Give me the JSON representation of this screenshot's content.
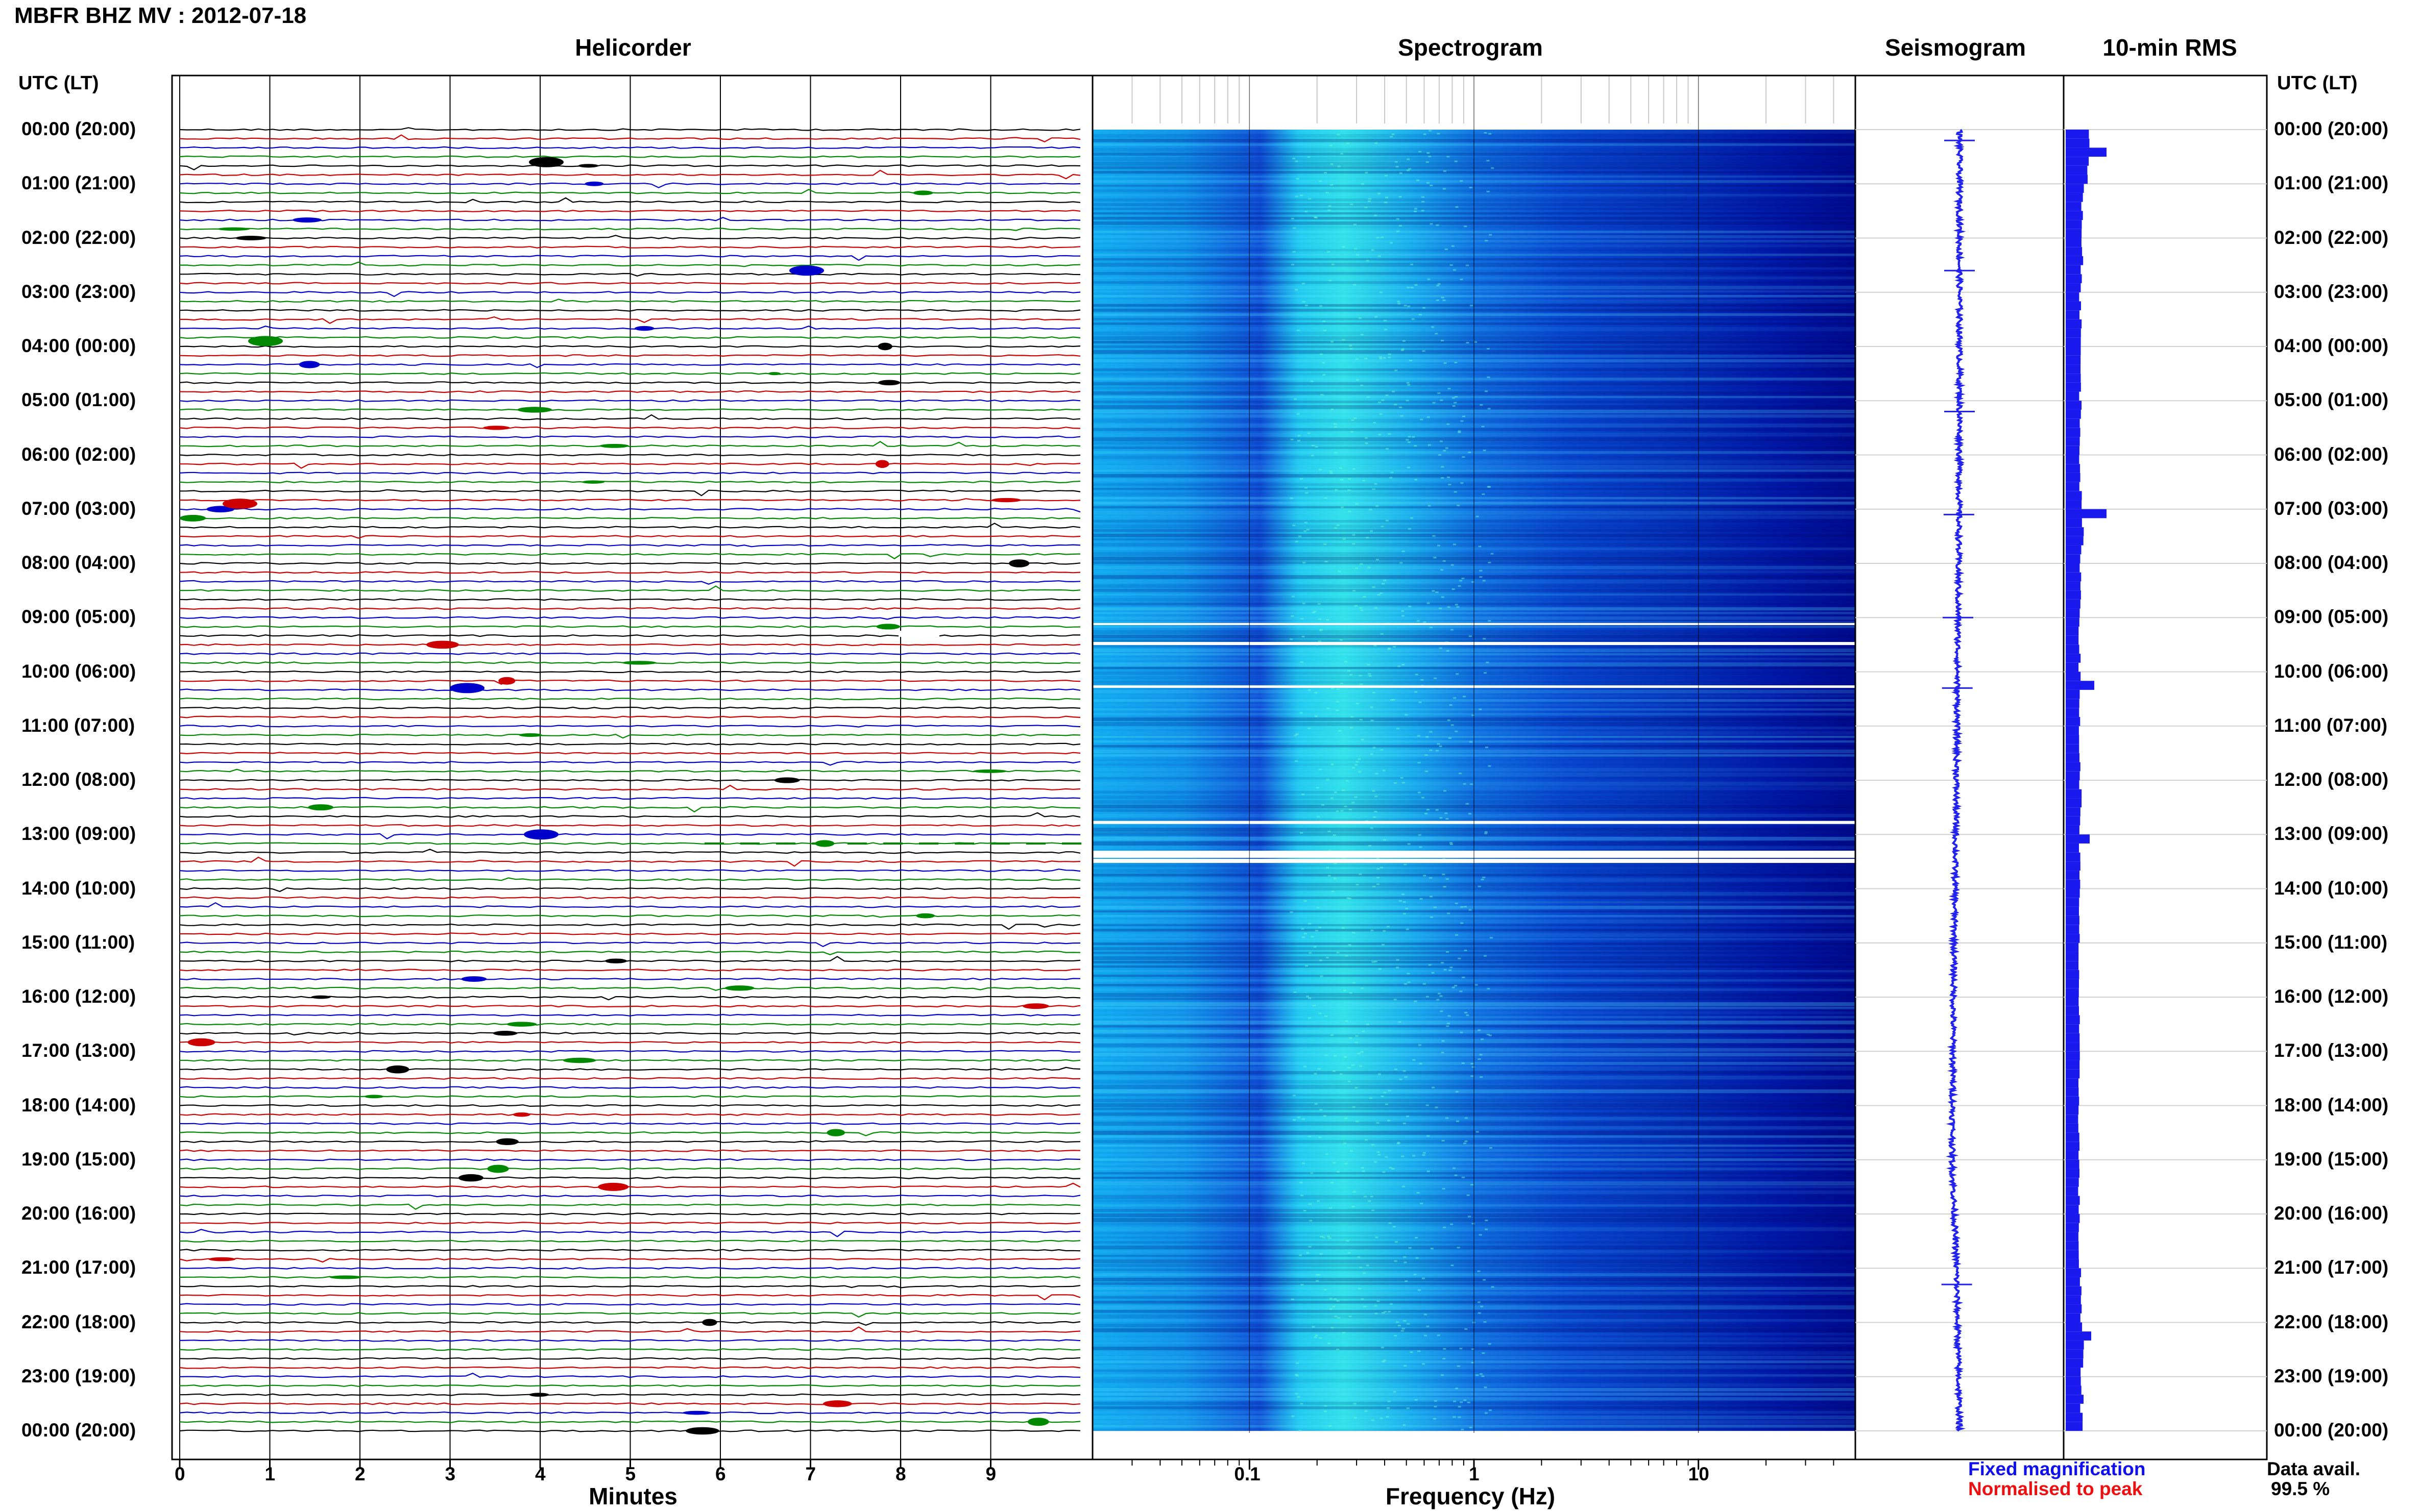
{
  "title": "MBFR BHZ MV : 2012-07-18",
  "panels": {
    "helicorder": "Helicorder",
    "spectrogram": "Spectrogram",
    "seismogram": "Seismogram",
    "rms": "10-min RMS"
  },
  "time_axis_header": "UTC (LT)",
  "time_labels": [
    "00:00 (20:00)",
    "01:00 (21:00)",
    "02:00 (22:00)",
    "03:00 (23:00)",
    "04:00 (00:00)",
    "05:00 (01:00)",
    "06:00 (02:00)",
    "07:00 (03:00)",
    "08:00 (04:00)",
    "09:00 (05:00)",
    "10:00 (06:00)",
    "11:00 (07:00)",
    "12:00 (08:00)",
    "13:00 (09:00)",
    "14:00 (10:00)",
    "15:00 (11:00)",
    "16:00 (12:00)",
    "17:00 (13:00)",
    "18:00 (14:00)",
    "19:00 (15:00)",
    "20:00 (16:00)",
    "21:00 (17:00)",
    "22:00 (18:00)",
    "23:00 (19:00)",
    "00:00 (20:00)"
  ],
  "x_axis": {
    "helicorder_label": "Minutes",
    "helicorder_ticks": [
      "0",
      "1",
      "2",
      "3",
      "4",
      "5",
      "6",
      "7",
      "8",
      "9"
    ],
    "spectrogram_label": "Frequency (Hz)",
    "spectrogram_ticks": [
      "0.1",
      "1",
      "10"
    ]
  },
  "legend": {
    "fixed": "Fixed magnification",
    "normalised": "Normalised to peak",
    "fixed_color": "#1010ee",
    "normalised_color": "#ee1010"
  },
  "data_availability": {
    "label": "Data avail.",
    "value": "99.5 %"
  },
  "colors": {
    "trace_cycle": [
      "#000000",
      "#cc0000",
      "#0000cc",
      "#008800"
    ],
    "spectrogram_low": "#0000a0",
    "spectrogram_high": "#40ffe0",
    "seismogram": "#2222ee",
    "rms_bar": "#1a1aee"
  },
  "chart_data": [
    {
      "type": "line",
      "name": "helicorder",
      "title": "Helicorder",
      "xlabel": "Minutes",
      "xlim": [
        0,
        10
      ],
      "rows_per_hour": 6,
      "hours": 24,
      "gaps": [
        {
          "time_utc": "09:30",
          "note": "short gap"
        },
        {
          "time_utc": "13:10",
          "note": "dashed gap"
        }
      ]
    },
    {
      "type": "heatmap",
      "name": "spectrogram",
      "title": "Spectrogram",
      "xlabel": "Frequency (Hz)",
      "xscale": "log",
      "xlim": [
        0.02,
        50
      ],
      "energy_peak_hz": [
        0.15,
        0.5
      ],
      "data_gaps_utc": [
        "09:10",
        "09:30",
        "10:10",
        "12:50",
        "13:15"
      ]
    },
    {
      "type": "line",
      "name": "seismogram",
      "title": "Seismogram",
      "drift": [
        {
          "hour": 0,
          "offset": 0.0
        },
        {
          "hour": 6,
          "offset": 0.0
        },
        {
          "hour": 12,
          "offset": -0.05
        },
        {
          "hour": 16,
          "offset": -0.1
        },
        {
          "hour": 19,
          "offset": -0.12
        },
        {
          "hour": 21,
          "offset": -0.05
        },
        {
          "hour": 24,
          "offset": 0.0
        }
      ],
      "spikes_hour": [
        0.2,
        2.6,
        5.2,
        7.1,
        9.0,
        10.3,
        21.3
      ]
    },
    {
      "type": "bar",
      "name": "rms",
      "title": "10-min RMS",
      "orientation": "horizontal",
      "interval_minutes": 10,
      "hourly_typical": [
        0.35,
        0.25,
        0.2,
        0.15,
        0.15,
        0.15,
        0.15,
        0.2,
        0.15,
        0.12,
        0.12,
        0.12,
        0.15,
        0.12,
        0.1,
        0.1,
        0.1,
        0.1,
        0.1,
        0.1,
        0.1,
        0.15,
        0.2,
        0.2
      ],
      "peaks": [
        {
          "hour": 0.4,
          "value": 1.0
        },
        {
          "hour": 7.0,
          "value": 1.0
        },
        {
          "hour": 10.2,
          "value": 0.6
        },
        {
          "hour": 13.0,
          "value": 0.45
        },
        {
          "hour": 22.2,
          "value": 0.5
        }
      ]
    }
  ]
}
